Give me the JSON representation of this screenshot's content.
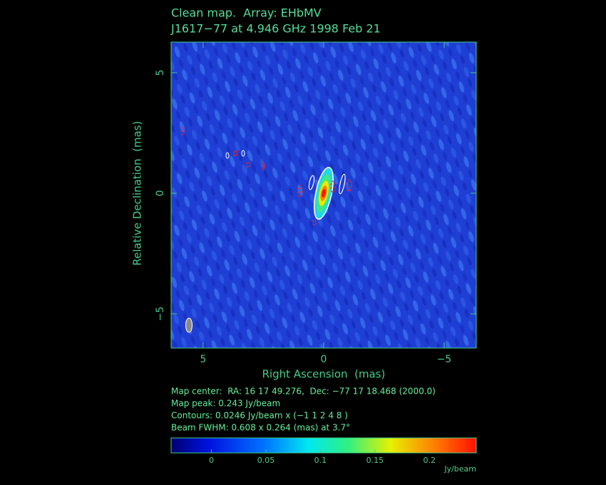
{
  "chart_data": {
    "type": "image",
    "title": "Clean map.  Array: EHbMV",
    "subtitle": "J1617−77 at 4.946 GHz 1998 Feb 21",
    "x_label": "Right Ascension  (mas)",
    "y_label": "Relative Declination  (mas)",
    "xlim": [
      6.33,
      -6.33
    ],
    "xticks": [
      5,
      0,
      {
        "value": -5,
        "label": "−5"
      }
    ],
    "ylim": [
      -6.42,
      6.27
    ],
    "yticks": [
      5,
      0,
      {
        "value": -5,
        "label": "−5"
      }
    ],
    "colorbar": {
      "lim": [
        -0.037,
        0.243
      ],
      "ticks": [
        0,
        0.05,
        0.1,
        0.15,
        0.2
      ],
      "label": "Jy/beam"
    },
    "notes": [
      "Map center:  RA: 16 17 49.276,  Dec: −77 17 18.468 (2000.0)",
      "Map peak: 0.243 Jy/beam",
      "Contours: 0.0246 Jy/beam x (−1 1 2 4 8 )",
      "Beam FWHM: 0.608 x 0.264 (mas) at 3.7°"
    ]
  }
}
